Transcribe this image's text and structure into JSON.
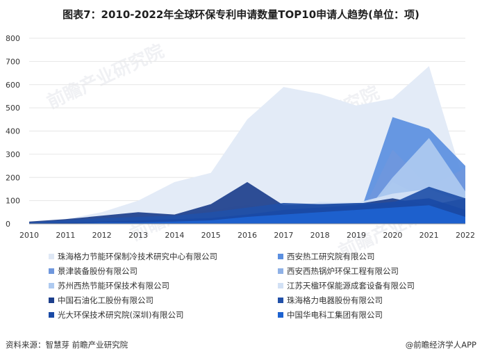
{
  "title": "图表7：2010-2022年全球环保专利申请数量TOP10申请人趋势(单位：项)",
  "watermark": "前瞻产业研究院",
  "footer": {
    "source": "资料来源：智慧芽 前瞻产业研究院",
    "brand": "@前瞻经济学人APP"
  },
  "chart_data": {
    "type": "area",
    "title": "图表7：2010-2022年全球环保专利申请数量TOP10申请人趋势(单位：项)",
    "x": [
      2010,
      2011,
      2012,
      2013,
      2014,
      2015,
      2016,
      2017,
      2018,
      2019,
      2020,
      2021,
      2022
    ],
    "ylim": [
      0,
      800
    ],
    "yticks": [
      0,
      100,
      200,
      300,
      400,
      500,
      600,
      700,
      800
    ],
    "grid": true,
    "legend_position": "bottom",
    "series": [
      {
        "name": "珠海格力节能环保制冷技术研究中心有限公司",
        "color": "#e3ebf7",
        "values": [
          0,
          20,
          50,
          100,
          180,
          220,
          450,
          590,
          560,
          510,
          540,
          680,
          160
        ]
      },
      {
        "name": "西安热工研究院有限公司",
        "color": "#5b8fe0",
        "values": [
          0,
          0,
          0,
          0,
          0,
          0,
          0,
          0,
          0,
          0,
          460,
          410,
          250
        ]
      },
      {
        "name": "景津装备股份有限公司",
        "color": "#6f97dd",
        "values": [
          0,
          0,
          0,
          0,
          0,
          0,
          0,
          0,
          0,
          0,
          320,
          160,
          240
        ]
      },
      {
        "name": "西安西热锅炉环保工程有限公司",
        "color": "#8fb1e6",
        "values": [
          0,
          0,
          0,
          0,
          0,
          0,
          0,
          0,
          0,
          0,
          180,
          100,
          130
        ]
      },
      {
        "name": "苏州西热节能环保技术有限公司",
        "color": "#aecaf0",
        "values": [
          0,
          0,
          0,
          0,
          0,
          0,
          0,
          0,
          0,
          0,
          200,
          370,
          140
        ]
      },
      {
        "name": "江苏天楹环保能源成套设备有限公司",
        "color": "#d2e1f5",
        "values": [
          5,
          10,
          15,
          30,
          40,
          60,
          80,
          60,
          95,
          90,
          130,
          150,
          90
        ]
      },
      {
        "name": "中国石油化工股份有限公司",
        "color": "#1d3f8c",
        "values": [
          10,
          20,
          35,
          50,
          40,
          85,
          180,
          80,
          85,
          85,
          110,
          80,
          110
        ]
      },
      {
        "name": "珠海格力电器股份有限公司",
        "color": "#2150a8",
        "values": [
          5,
          15,
          25,
          30,
          35,
          50,
          70,
          90,
          85,
          90,
          90,
          160,
          110
        ]
      },
      {
        "name": "光大环保技术研究院(深圳)有限公司",
        "color": "#1a4aa6",
        "values": [
          0,
          5,
          10,
          15,
          20,
          25,
          40,
          60,
          70,
          80,
          95,
          110,
          60
        ]
      },
      {
        "name": "中国华电科工集团有限公司",
        "color": "#1d62d0",
        "values": [
          0,
          0,
          5,
          5,
          10,
          15,
          30,
          40,
          50,
          60,
          70,
          80,
          30
        ]
      }
    ]
  }
}
